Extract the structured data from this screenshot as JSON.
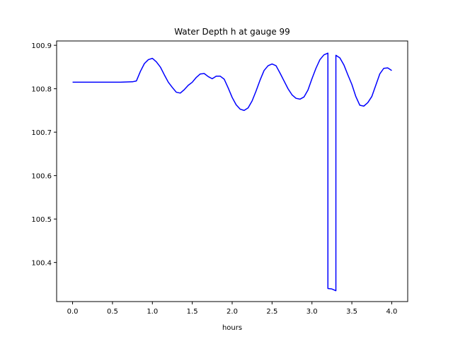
{
  "chart_data": {
    "type": "line",
    "title": "Water Depth h at gauge 99",
    "xlabel": "hours",
    "ylabel": "",
    "xlim": [
      -0.2,
      4.2
    ],
    "ylim": [
      100.31,
      100.91
    ],
    "xticks": [
      0.0,
      0.5,
      1.0,
      1.5,
      2.0,
      2.5,
      3.0,
      3.5,
      4.0
    ],
    "xtick_labels": [
      "0.0",
      "0.5",
      "1.0",
      "1.5",
      "2.0",
      "2.5",
      "3.0",
      "3.5",
      "4.0"
    ],
    "yticks": [
      100.4,
      100.5,
      100.6,
      100.7,
      100.8,
      100.9
    ],
    "ytick_labels": [
      "100.4",
      "100.5",
      "100.6",
      "100.7",
      "100.8",
      "100.9"
    ],
    "grid": false,
    "series": [
      {
        "color": "#0000ff",
        "x": [
          0.0,
          0.2,
          0.4,
          0.6,
          0.75,
          0.8,
          0.85,
          0.9,
          0.95,
          1.0,
          1.05,
          1.1,
          1.15,
          1.2,
          1.25,
          1.3,
          1.35,
          1.4,
          1.45,
          1.5,
          1.55,
          1.6,
          1.65,
          1.7,
          1.75,
          1.8,
          1.85,
          1.9,
          1.95,
          2.0,
          2.05,
          2.1,
          2.15,
          2.2,
          2.25,
          2.3,
          2.35,
          2.4,
          2.45,
          2.5,
          2.55,
          2.6,
          2.65,
          2.7,
          2.75,
          2.8,
          2.85,
          2.9,
          2.95,
          3.0,
          3.05,
          3.1,
          3.15,
          3.2,
          3.2,
          3.25,
          3.3,
          3.3,
          3.35,
          3.4,
          3.45,
          3.5,
          3.55,
          3.6,
          3.65,
          3.7,
          3.75,
          3.8,
          3.85,
          3.9,
          3.95,
          4.0
        ],
        "y": [
          100.815,
          100.815,
          100.815,
          100.815,
          100.816,
          100.818,
          100.84,
          100.858,
          100.867,
          100.87,
          100.862,
          100.85,
          100.832,
          100.815,
          100.803,
          100.792,
          100.79,
          100.798,
          100.808,
          100.815,
          100.826,
          100.834,
          100.835,
          100.828,
          100.823,
          100.829,
          100.829,
          100.822,
          100.802,
          100.78,
          100.763,
          100.753,
          100.75,
          100.756,
          100.772,
          100.795,
          100.82,
          100.842,
          100.853,
          100.857,
          100.853,
          100.836,
          100.818,
          100.8,
          100.786,
          100.778,
          100.776,
          100.781,
          100.797,
          100.823,
          100.847,
          100.867,
          100.878,
          100.882,
          100.34,
          100.339,
          100.335,
          100.877,
          100.871,
          100.855,
          100.832,
          100.81,
          100.782,
          100.762,
          100.76,
          100.768,
          100.782,
          100.808,
          100.834,
          100.847,
          100.848,
          100.842
        ]
      }
    ]
  }
}
